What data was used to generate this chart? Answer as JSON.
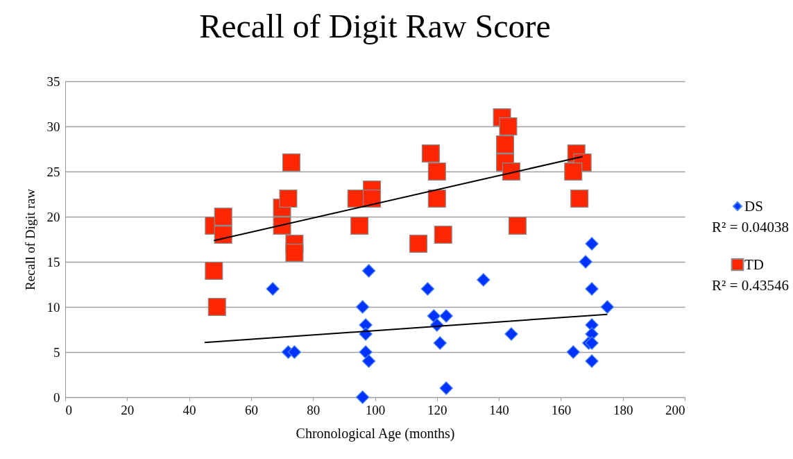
{
  "chart_data": {
    "type": "scatter",
    "title": "Recall of Digit Raw Score",
    "xlabel": "Chronological Age (months)",
    "ylabel": "Recall of Digit raw",
    "xlim": [
      0,
      200
    ],
    "xticks": [
      0,
      20,
      40,
      60,
      80,
      100,
      120,
      140,
      160,
      180,
      200
    ],
    "ylim": [
      0,
      35
    ],
    "yticks": [
      0,
      5,
      10,
      15,
      20,
      25,
      30,
      35
    ],
    "grid": "y",
    "legend": "right",
    "annotations": [
      "R² = 0.04038",
      "R² = 0.43546"
    ],
    "series": [
      {
        "name": "DS",
        "marker": "diamond",
        "color": "#0033ff",
        "x": [
          67,
          72,
          74,
          98,
          96,
          97,
          97,
          97,
          98,
          96,
          117,
          119,
          123,
          120,
          121,
          123,
          135,
          144,
          170,
          168,
          170,
          175,
          170,
          170,
          169,
          170,
          164,
          170
        ],
        "values": [
          12,
          5,
          5,
          14,
          10,
          8,
          7,
          5,
          4,
          0,
          12,
          9,
          9,
          8,
          6,
          1,
          13,
          7,
          17,
          15,
          12,
          10,
          8,
          7,
          6,
          6,
          5,
          4
        ]
      },
      {
        "name": "TD",
        "marker": "square",
        "color": "#ff2600",
        "x": [
          48,
          51,
          51,
          48,
          49,
          73,
          70,
          70,
          72,
          74,
          74,
          94,
          99,
          99,
          95,
          114,
          122,
          118,
          120,
          120,
          141,
          143,
          142,
          142,
          144,
          146,
          165,
          167,
          164,
          166
        ],
        "values": [
          19,
          20,
          18,
          14,
          10,
          26,
          19,
          21,
          22,
          17,
          16,
          22,
          23,
          22,
          19,
          17,
          18,
          27,
          25,
          22,
          31,
          30,
          28,
          26,
          25,
          19,
          27,
          26,
          25,
          22
        ]
      },
      {
        "type": "line",
        "line_style": "solid",
        "color": "#000000",
        "x": [
          45,
          175
        ],
        "values": [
          6.05,
          9.18
        ]
      },
      {
        "type": "line",
        "line_style": "solid",
        "color": "#000000",
        "x": [
          48,
          167
        ],
        "values": [
          17.35,
          26.66
        ]
      }
    ]
  }
}
